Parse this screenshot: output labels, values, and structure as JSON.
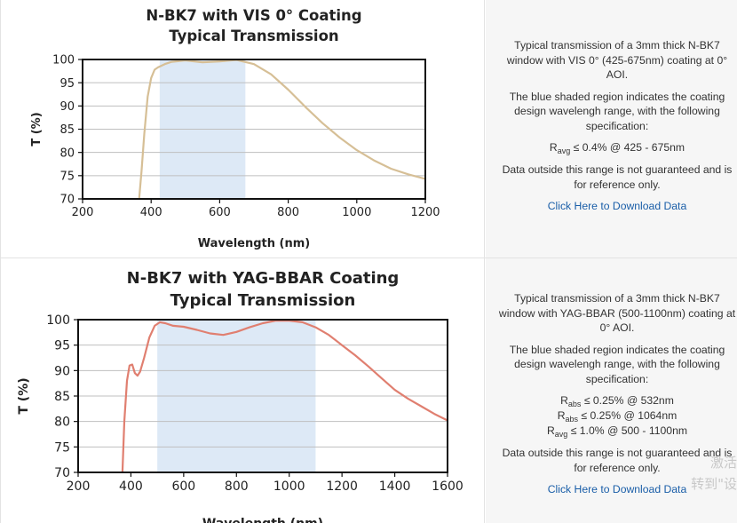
{
  "chart_data": [
    {
      "type": "line",
      "title_lines": [
        "N-BK7 with VIS 0° Coating",
        "Typical Transmission"
      ],
      "xlabel": "Wavelength (nm)",
      "ylabel": "T (%)",
      "xlim": [
        200,
        1200
      ],
      "ylim": [
        70,
        100
      ],
      "xticks": [
        200,
        400,
        600,
        800,
        1000,
        1200
      ],
      "yticks": [
        70,
        75,
        80,
        85,
        90,
        95,
        100
      ],
      "grid": true,
      "shaded_range": [
        425,
        675
      ],
      "color": "#d6bf96",
      "shade_color": "#dde9f6",
      "series": [
        {
          "x": [
            365,
            372,
            380,
            390,
            400,
            410,
            420,
            440,
            460,
            500,
            550,
            600,
            650,
            700,
            750,
            800,
            850,
            900,
            950,
            1000,
            1050,
            1100,
            1150,
            1200
          ],
          "y": [
            70,
            76,
            84,
            92,
            96,
            97.8,
            98.3,
            99,
            99.5,
            99.8,
            99.4,
            99.6,
            99.9,
            99,
            96.8,
            93.5,
            89.8,
            86.3,
            83.2,
            80.5,
            78.3,
            76.5,
            75.3,
            74.3
          ]
        }
      ]
    },
    {
      "type": "line",
      "title_lines": [
        "N-BK7 with YAG-BBAR Coating",
        "Typical Transmission"
      ],
      "xlabel": "Wavelength (nm)",
      "ylabel": "T (%)",
      "xlim": [
        200,
        1600
      ],
      "ylim": [
        70,
        100
      ],
      "xticks": [
        200,
        400,
        600,
        800,
        1000,
        1200,
        1400,
        1600
      ],
      "yticks": [
        70,
        75,
        80,
        85,
        90,
        95,
        100
      ],
      "grid": true,
      "shaded_range": [
        500,
        1100
      ],
      "color": "#e07f70",
      "shade_color": "#dde9f6",
      "series": [
        {
          "x": [
            368,
            375,
            385,
            395,
            405,
            415,
            425,
            435,
            450,
            470,
            490,
            510,
            530,
            560,
            600,
            650,
            700,
            750,
            800,
            850,
            900,
            950,
            1000,
            1050,
            1100,
            1150,
            1200,
            1250,
            1300,
            1350,
            1400,
            1450,
            1500,
            1550,
            1600
          ],
          "y": [
            70,
            80,
            88,
            91,
            91.2,
            89.5,
            89,
            89.8,
            92.5,
            96.5,
            98.8,
            99.5,
            99.3,
            98.8,
            98.6,
            98,
            97.3,
            97,
            97.6,
            98.5,
            99.3,
            99.8,
            99.8,
            99.5,
            98.5,
            97,
            95,
            93,
            90.8,
            88.5,
            86.2,
            84.5,
            83,
            81.5,
            80.2
          ]
        }
      ]
    }
  ],
  "panels": [
    {
      "desc": "Typical transmission of a 3mm thick N-BK7 window with VIS 0° (425-675nm) coating at 0° AOI.",
      "shade_note": "The blue shaded region indicates the coating design wavelengh range, with the following specification:",
      "specs": [
        {
          "main": "R",
          "sub": "avg",
          "rest": " ≤ 0.4% @ 425 - 675nm"
        }
      ],
      "disclaimer": "Data outside this range is not guaranteed and is for reference only.",
      "link": "Click Here to Download Data"
    },
    {
      "desc": "Typical transmission of a 3mm thick N-BK7 window with YAG-BBAR (500-1100nm) coating at 0° AOI.",
      "shade_note": "The blue shaded region indicates the coating design wavelengh range, with the following specification:",
      "specs": [
        {
          "main": "R",
          "sub": "abs",
          "rest": " ≤ 0.25% @ 532nm"
        },
        {
          "main": "R",
          "sub": "abs",
          "rest": " ≤ 0.25% @ 1064nm"
        },
        {
          "main": "R",
          "sub": "avg",
          "rest": " ≤ 1.0% @ 500 - 1100nm"
        }
      ],
      "disclaimer": "Data outside this range is not guaranteed and is for reference only.",
      "link": "Click Here to Download Data"
    }
  ],
  "watermark": {
    "line1": "激活",
    "line2": "转到\"设"
  }
}
